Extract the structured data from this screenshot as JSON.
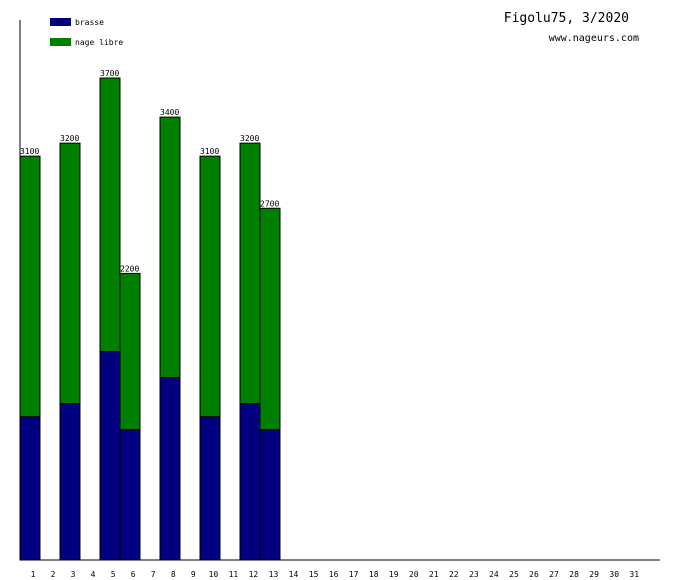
{
  "header": {
    "title": "Figolu75, 3/2020",
    "subtitle": "www.nageurs.com"
  },
  "colors": {
    "brasse": "#000080",
    "nage_libre": "#008000",
    "axis": "#000000",
    "background": "#ffffff"
  },
  "chart_data": {
    "type": "bar",
    "stacked": true,
    "title": "Figolu75, 3/2020",
    "subtitle": "www.nageurs.com",
    "xlabel": "",
    "ylabel": "",
    "ylim": [
      0,
      3700
    ],
    "grid": false,
    "legend_position": "top-left",
    "categories": [
      "1",
      "2",
      "3",
      "4",
      "5",
      "6",
      "7",
      "8",
      "9",
      "10",
      "11",
      "12",
      "13",
      "14",
      "15",
      "16",
      "17",
      "18",
      "19",
      "20",
      "21",
      "22",
      "23",
      "24",
      "25",
      "26",
      "27",
      "28",
      "29",
      "30",
      "31"
    ],
    "series": [
      {
        "name": "brasse",
        "color": "#000080",
        "values": [
          1100,
          0,
          1200,
          0,
          1600,
          1000,
          0,
          1400,
          0,
          1100,
          0,
          1200,
          1000,
          0,
          0,
          0,
          0,
          0,
          0,
          0,
          0,
          0,
          0,
          0,
          0,
          0,
          0,
          0,
          0,
          0,
          0
        ]
      },
      {
        "name": "nage libre",
        "color": "#008000",
        "values": [
          2000,
          0,
          2000,
          0,
          2100,
          1200,
          0,
          2000,
          0,
          2000,
          0,
          2000,
          1700,
          0,
          0,
          0,
          0,
          0,
          0,
          0,
          0,
          0,
          0,
          0,
          0,
          0,
          0,
          0,
          0,
          0,
          0
        ]
      }
    ],
    "totals": [
      3100,
      0,
      3200,
      0,
      3700,
      2200,
      0,
      3400,
      0,
      3100,
      0,
      3200,
      2700,
      0,
      0,
      0,
      0,
      0,
      0,
      0,
      0,
      0,
      0,
      0,
      0,
      0,
      0,
      0,
      0,
      0,
      0
    ],
    "total_labels": [
      "3100",
      "",
      "3200",
      "",
      "3700",
      "2200",
      "",
      "3400",
      "",
      "3100",
      "",
      "3200",
      "2700",
      "",
      "",
      "",
      "",
      "",
      "",
      "",
      "",
      "",
      "",
      "",
      "",
      "",
      "",
      "",
      "",
      "",
      ""
    ]
  }
}
